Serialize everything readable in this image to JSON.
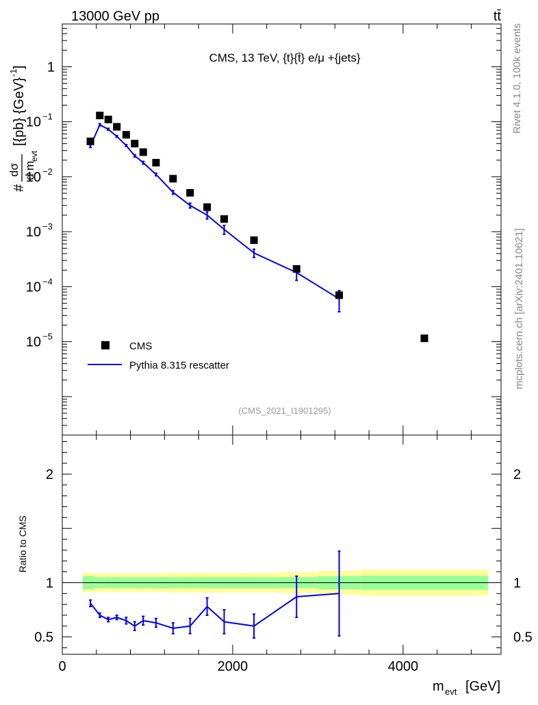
{
  "header": {
    "energy_label": "13000 GeV pp",
    "process_label": "tt̄"
  },
  "side_labels": {
    "rivet": "Rivet 4.1.0,  100k events",
    "site": "mcplots.cern.ch [arXiv:2401.10621]"
  },
  "chart_data": [
    {
      "type": "scatter",
      "panel": "main",
      "title": "CMS, 13 TeV, {t}{t̄} e/μ +{jets}",
      "watermark": "(CMS_2021_I1901295)",
      "ylabel": "#dσ/d m_evt [{pb} {GeV}^-1]",
      "ylabel_parts": {
        "hash": "#",
        "num": "dσ",
        "den": "d m",
        "den_sub": "evt",
        "units": "[{pb} {GeV}",
        "exp": "-1",
        "close": "]"
      },
      "yscale": "log",
      "ylim": [
        2e-07,
        6
      ],
      "xlim": [
        0,
        5150
      ],
      "y_ticks": [
        {
          "value": 1,
          "label": "1"
        },
        {
          "value": 0.1,
          "label": "10",
          "exp": "−1"
        },
        {
          "value": 0.01,
          "label": "10",
          "exp": "−2"
        },
        {
          "value": 0.001,
          "label": "10",
          "exp": "−3"
        },
        {
          "value": 0.0001,
          "label": "10",
          "exp": "−4"
        },
        {
          "value": 1e-05,
          "label": "10",
          "exp": "−5"
        }
      ],
      "legend": [
        {
          "name": "CMS",
          "marker": "square",
          "color": "#000000"
        },
        {
          "name": "Pythia 8.315 rescatter",
          "marker": "line",
          "color": "#0000ee"
        }
      ],
      "series": [
        {
          "name": "CMS",
          "color": "#000000",
          "x": [
            330,
            440,
            540,
            640,
            750,
            850,
            950,
            1100,
            1300,
            1500,
            1700,
            1900,
            2250,
            2750,
            3250,
            4250
          ],
          "y": [
            0.044,
            0.13,
            0.11,
            0.081,
            0.058,
            0.04,
            0.028,
            0.018,
            0.0092,
            0.0051,
            0.0028,
            0.0017,
            0.0007,
            0.00021,
            7e-05,
            1.15e-05
          ]
        },
        {
          "name": "Pythia 8.315 rescatter",
          "color": "#0000ee",
          "x": [
            330,
            440,
            540,
            640,
            750,
            850,
            950,
            1100,
            1300,
            1500,
            1700,
            1900,
            2250,
            2750,
            3250
          ],
          "y": [
            0.036,
            0.088,
            0.073,
            0.054,
            0.037,
            0.024,
            0.018,
            0.011,
            0.0052,
            0.003,
            0.002,
            0.0011,
            0.00041,
            0.00018,
            6e-05
          ],
          "y_err": [
            0.002,
            0.004,
            0.003,
            0.002,
            0.0015,
            0.0012,
            0.001,
            0.0006,
            0.0004,
            0.0003,
            0.0003,
            0.0002,
            7e-05,
            5e-05,
            2.5e-05
          ]
        }
      ]
    },
    {
      "type": "line",
      "panel": "ratio",
      "ylabel": "Ratio to CMS",
      "xlabel": "m_evt [GeV]",
      "xlabel_parts": {
        "main": "m",
        "sub": "evt",
        "units": "[GeV]"
      },
      "ylim": [
        0.34,
        2.36
      ],
      "xlim": [
        0,
        5150
      ],
      "x_ticks": [
        0,
        2000,
        4000
      ],
      "y_ticks": [
        0.5,
        1,
        2
      ],
      "reference_line": 1,
      "bands": {
        "edges": [
          240,
          380,
          500,
          590,
          700,
          800,
          900,
          1000,
          1200,
          1400,
          1600,
          1800,
          2000,
          2500,
          3000,
          3500,
          5000
        ],
        "inner": [
          0.06,
          0.05,
          0.05,
          0.05,
          0.05,
          0.05,
          0.05,
          0.05,
          0.05,
          0.05,
          0.05,
          0.05,
          0.05,
          0.05,
          0.06,
          0.065
        ],
        "outer": [
          0.09,
          0.085,
          0.085,
          0.085,
          0.085,
          0.085,
          0.085,
          0.085,
          0.09,
          0.09,
          0.09,
          0.09,
          0.09,
          0.095,
          0.11,
          0.12
        ],
        "inner_color": "#99ff99",
        "outer_color": "#ffff99"
      },
      "series": [
        {
          "name": "Pythia 8.315 rescatter",
          "color": "#0000ee",
          "x": [
            330,
            440,
            540,
            640,
            750,
            850,
            950,
            1100,
            1300,
            1500,
            1700,
            1900,
            2250,
            2750,
            3250
          ],
          "y": [
            0.81,
            0.7,
            0.66,
            0.68,
            0.65,
            0.6,
            0.65,
            0.63,
            0.58,
            0.6,
            0.78,
            0.64,
            0.6,
            0.87,
            0.9
          ],
          "y_err": [
            0.03,
            0.02,
            0.02,
            0.02,
            0.03,
            0.04,
            0.04,
            0.04,
            0.05,
            0.07,
            0.08,
            0.11,
            0.11,
            0.19,
            0.39
          ]
        }
      ]
    }
  ]
}
